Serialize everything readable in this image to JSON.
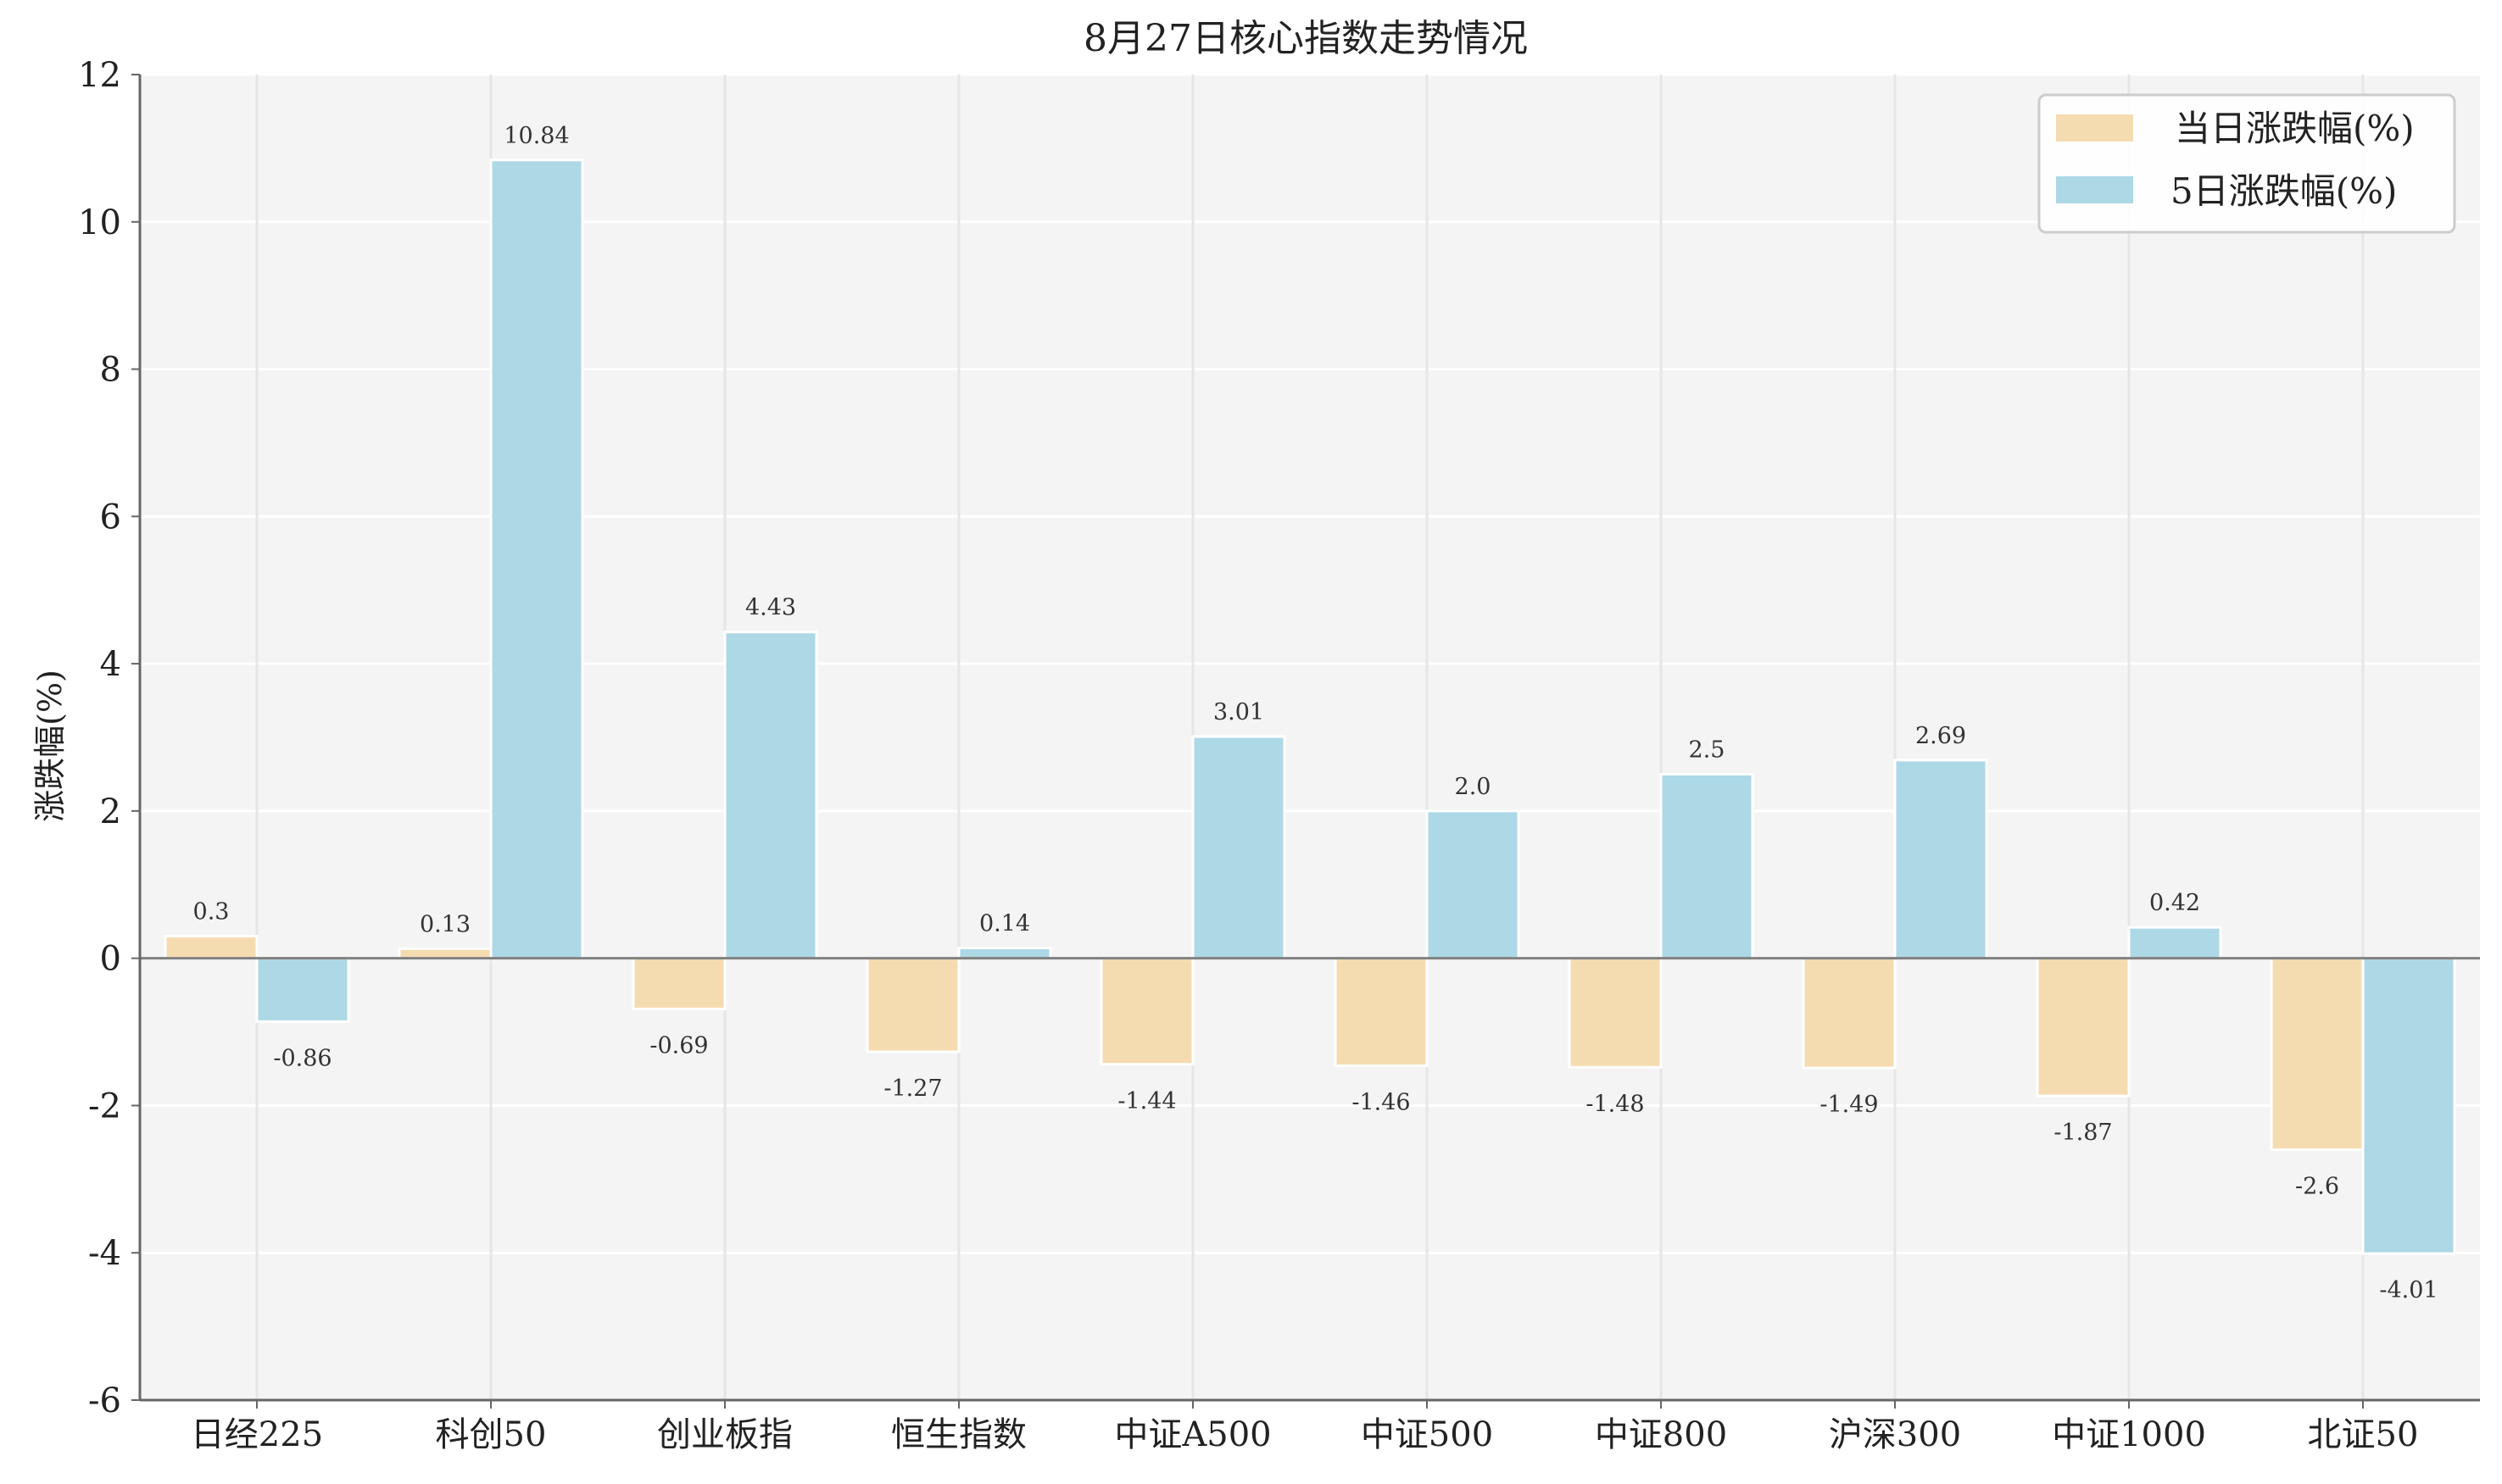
{
  "chart_data": {
    "type": "bar",
    "title": "8月27日核心指数走势情况",
    "xlabel": "",
    "ylabel": "涨跌幅(%)",
    "ylim": [
      -6,
      12
    ],
    "yticks": [
      -6,
      -4,
      -2,
      0,
      2,
      4,
      6,
      8,
      10,
      12
    ],
    "grid": true,
    "legend_position": "top-right",
    "categories": [
      "日经225",
      "科创50",
      "创业板指",
      "恒生指数",
      "中证A500",
      "中证500",
      "中证800",
      "沪深300",
      "中证1000",
      "北证50"
    ],
    "series": [
      {
        "name": "当日涨跌幅(%)",
        "color": "#f5dcb0",
        "values": [
          0.3,
          0.13,
          -0.69,
          -1.27,
          -1.44,
          -1.46,
          -1.48,
          -1.49,
          -1.87,
          -2.6
        ],
        "labels": [
          "0.3",
          "0.13",
          "-0.69",
          "-1.27",
          "-1.44",
          "-1.46",
          "-1.48",
          "-1.49",
          "-1.87",
          "-2.6"
        ]
      },
      {
        "name": "5日涨跌幅(%)",
        "color": "#add8e6",
        "values": [
          -0.86,
          10.84,
          4.43,
          0.14,
          3.01,
          2.0,
          2.5,
          2.69,
          0.42,
          -4.01
        ],
        "labels": [
          "-0.86",
          "10.84",
          "4.43",
          "0.14",
          "3.01",
          "2.0",
          "2.5",
          "2.69",
          "0.42",
          "-4.01"
        ]
      }
    ]
  }
}
